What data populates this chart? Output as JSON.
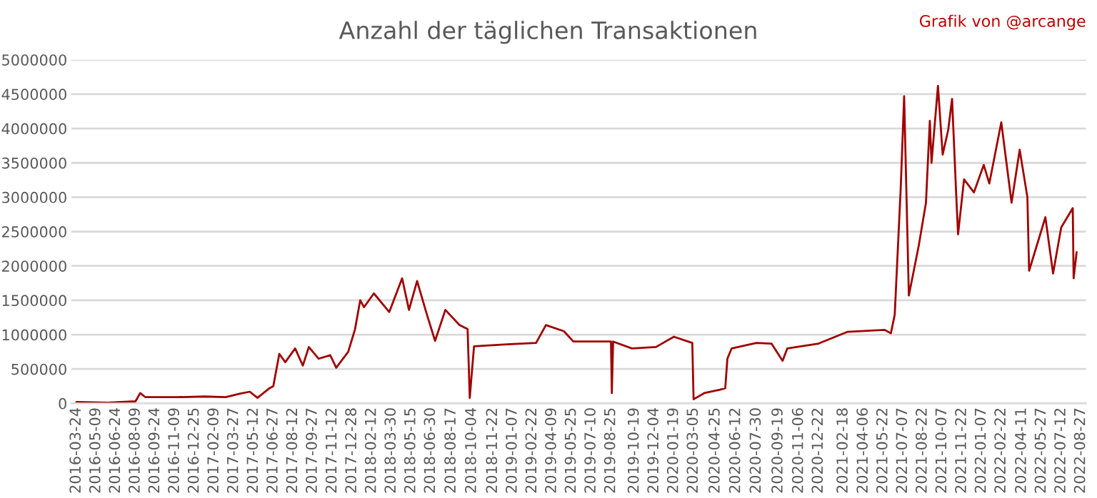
{
  "chart_data": {
    "type": "line",
    "title": "Anzahl der täglichen Transaktionen",
    "annotations": [
      "Grafik von @arcange"
    ],
    "x": [
      "2016-03-24",
      "2016-06-05",
      "2016-08-09",
      "2016-08-20",
      "2016-09-01",
      "2016-11-14",
      "2017-01-17",
      "2017-03-08",
      "2017-04-09",
      "2017-05-03",
      "2017-05-21",
      "2017-06-18",
      "2017-06-27",
      "2017-07-11",
      "2017-07-25",
      "2017-08-17",
      "2017-09-04",
      "2017-09-18",
      "2017-10-11",
      "2017-11-07",
      "2017-11-21",
      "2017-12-19",
      "2018-01-04",
      "2018-01-16",
      "2018-01-25",
      "2018-02-17",
      "2018-03-25",
      "2018-04-24",
      "2018-05-10",
      "2018-05-29",
      "2018-06-21",
      "2018-07-10",
      "2018-08-03",
      "2018-09-05",
      "2018-09-24",
      "2018-09-29",
      "2018-10-09",
      "2018-12-25",
      "2019-03-03",
      "2019-03-26",
      "2019-05-07",
      "2019-05-29",
      "2019-08-25",
      "2019-08-27",
      "2019-08-30",
      "2019-10-13",
      "2019-12-08",
      "2020-01-19",
      "2020-02-21",
      "2020-03-02",
      "2020-03-05",
      "2020-03-30",
      "2020-05-06",
      "2020-05-18",
      "2020-05-23",
      "2020-06-02",
      "2020-07-30",
      "2020-09-03",
      "2020-09-29",
      "2020-10-10",
      "2020-12-22",
      "2021-02-27",
      "2021-05-25",
      "2021-06-09",
      "2021-06-18",
      "2021-07-02",
      "2021-07-10",
      "2021-07-21",
      "2021-08-13",
      "2021-08-30",
      "2021-09-08",
      "2021-09-12",
      "2021-09-27",
      "2021-10-08",
      "2021-10-21",
      "2021-10-30",
      "2021-11-09",
      "2021-11-13",
      "2021-11-27",
      "2021-12-20",
      "2022-01-12",
      "2022-01-25",
      "2022-02-22",
      "2022-03-18",
      "2022-04-06",
      "2022-04-24",
      "2022-04-28",
      "2022-05-22",
      "2022-06-05",
      "2022-06-23",
      "2022-07-12",
      "2022-08-08",
      "2022-08-10",
      "2022-08-17"
    ],
    "series": [
      {
        "color": "#a00000",
        "values": [
          20000,
          10000,
          30000,
          150000,
          90000,
          90000,
          100000,
          90000,
          140000,
          170000,
          80000,
          220000,
          250000,
          720000,
          600000,
          800000,
          550000,
          820000,
          650000,
          700000,
          520000,
          750000,
          1080000,
          1500000,
          1400000,
          1600000,
          1330000,
          1820000,
          1360000,
          1780000,
          1290000,
          910000,
          1360000,
          1140000,
          1080000,
          80000,
          830000,
          860000,
          880000,
          1140000,
          1050000,
          900000,
          900000,
          150000,
          900000,
          800000,
          820000,
          970000,
          900000,
          880000,
          60000,
          150000,
          200000,
          220000,
          650000,
          800000,
          880000,
          870000,
          620000,
          800000,
          870000,
          1040000,
          1070000,
          1020000,
          1290000,
          3130000,
          4470000,
          1570000,
          2290000,
          2920000,
          4110000,
          3500000,
          4620000,
          3620000,
          3980000,
          4430000,
          2990000,
          2460000,
          3260000,
          3070000,
          3470000,
          3200000,
          4090000,
          2920000,
          3690000,
          3000000,
          1930000,
          2420000,
          2710000,
          1890000,
          2560000,
          2840000,
          1820000,
          2200000
        ]
      }
    ],
    "xlim": [
      "2016-03-12",
      "2022-09-08"
    ],
    "xticks": [
      "2016-03-24",
      "2016-05-09",
      "2016-06-24",
      "2016-08-09",
      "2016-09-24",
      "2016-11-09",
      "2016-12-25",
      "2017-02-09",
      "2017-03-27",
      "2017-05-12",
      "2017-06-27",
      "2017-08-12",
      "2017-09-27",
      "2017-11-12",
      "2017-12-28",
      "2018-02-12",
      "2018-03-30",
      "2018-05-15",
      "2018-06-30",
      "2018-08-17",
      "2018-10-04",
      "2018-11-22",
      "2019-01-07",
      "2019-02-22",
      "2019-04-09",
      "2019-05-25",
      "2019-07-10",
      "2019-08-25",
      "2019-10-19",
      "2019-12-04",
      "2020-01-19",
      "2020-03-05",
      "2020-04-25",
      "2020-06-12",
      "2020-07-30",
      "2020-09-19",
      "2020-11-06",
      "2020-12-22",
      "2021-02-18",
      "2021-04-06",
      "2021-05-22",
      "2021-07-07",
      "2021-08-22",
      "2021-10-07",
      "2021-11-22",
      "2022-01-07",
      "2022-02-22",
      "2022-04-11",
      "2022-05-27",
      "2022-07-12",
      "2022-08-27"
    ],
    "ylim": [
      0,
      5000000
    ],
    "yticks": [
      0,
      500000,
      1000000,
      1500000,
      2000000,
      2500000,
      3000000,
      3500000,
      4000000,
      4500000,
      5000000
    ],
    "grid": "y",
    "marker": "none",
    "line_style": "solid"
  }
}
